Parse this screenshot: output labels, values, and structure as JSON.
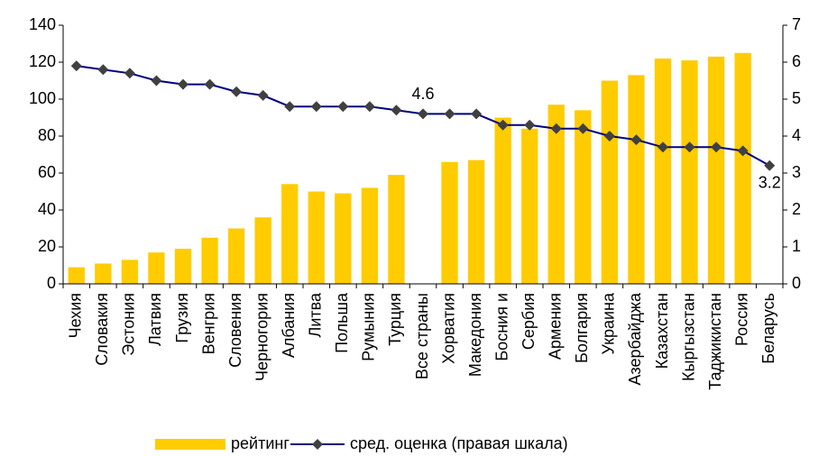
{
  "chart_data": {
    "type": "bar_line",
    "categories": [
      "Чехия",
      "Словакия",
      "Эстония",
      "Латвия",
      "Грузия",
      "Венгрия",
      "Словения",
      "Черногория",
      "Албания",
      "Литва",
      "Польша",
      "Румыния",
      "Турция",
      "Все страны",
      "Хорватия",
      "Македония",
      "Босния и",
      "Сербия",
      "Армения",
      "Болгария",
      "Украина",
      "Азербайджа",
      "Казахстан",
      "Кыргызстан",
      "Таджикистан",
      "Россия",
      "Беларусь"
    ],
    "series": [
      {
        "name": "рейтинг",
        "type": "bar",
        "color": "#ffcc00",
        "values": [
          9,
          11,
          13,
          17,
          19,
          25,
          30,
          36,
          54,
          50,
          49,
          52,
          59,
          null,
          66,
          67,
          90,
          84,
          97,
          94,
          110,
          113,
          122,
          121,
          123,
          125,
          null
        ]
      },
      {
        "name": "сред. оценка (правая шкала)",
        "type": "line",
        "axis": "y2",
        "color": "#000080",
        "marker_color": "#404040",
        "values": [
          5.9,
          5.8,
          5.7,
          5.5,
          5.4,
          5.4,
          5.2,
          5.1,
          4.8,
          4.8,
          4.8,
          4.8,
          4.7,
          4.6,
          4.6,
          4.6,
          4.3,
          4.3,
          4.2,
          4.2,
          4.0,
          3.9,
          3.7,
          3.7,
          3.7,
          3.6,
          3.2
        ],
        "value_labels": [
          null,
          null,
          null,
          null,
          null,
          null,
          null,
          null,
          null,
          null,
          null,
          null,
          null,
          "4.6",
          null,
          null,
          null,
          null,
          null,
          null,
          null,
          null,
          null,
          null,
          null,
          null,
          "3.2"
        ]
      }
    ],
    "ylim": [
      0,
      140
    ],
    "yticks": [
      0,
      20,
      40,
      60,
      80,
      100,
      120,
      140
    ],
    "y2lim": [
      0,
      7
    ],
    "y2ticks": [
      0,
      1,
      2,
      3,
      4,
      5,
      6,
      7
    ],
    "grid": false,
    "legend": "bottom"
  }
}
